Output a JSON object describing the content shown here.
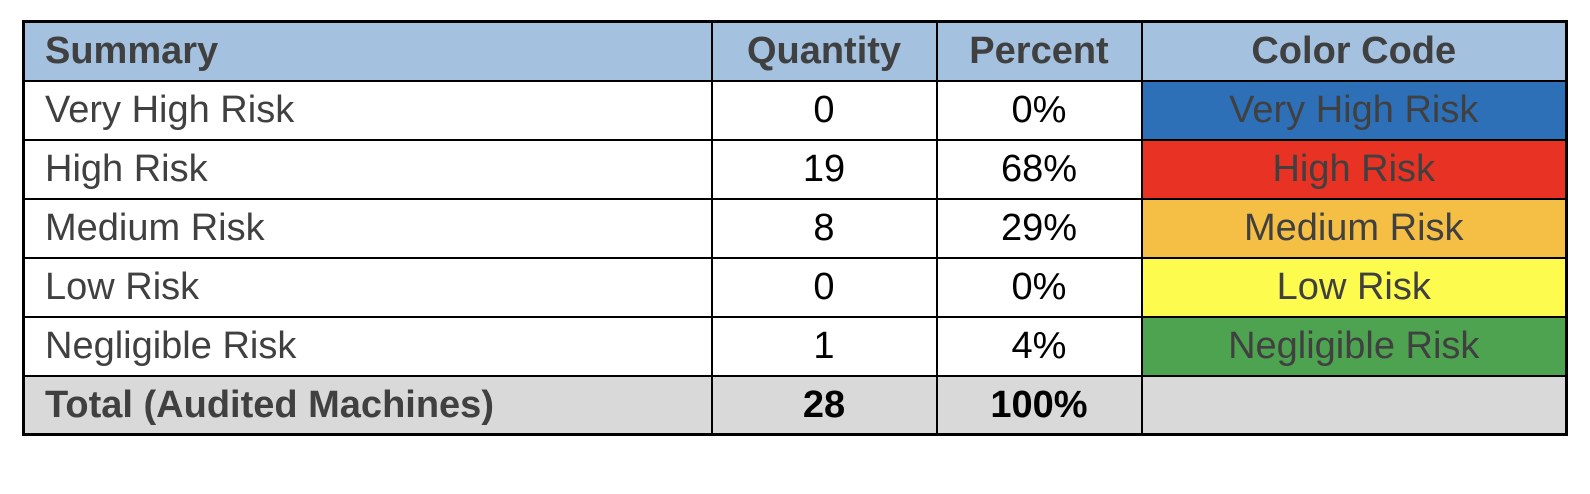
{
  "headers": {
    "summary": "Summary",
    "quantity": "Quantity",
    "percent": "Percent",
    "color_code": "Color Code"
  },
  "rows": [
    {
      "label": "Very High Risk",
      "quantity": "0",
      "percent": "0%",
      "color_label": "Very High Risk",
      "color": "#2e70b8"
    },
    {
      "label": "High Risk",
      "quantity": "19",
      "percent": "68%",
      "color_label": "High Risk",
      "color": "#e83224"
    },
    {
      "label": "Medium Risk",
      "quantity": "8",
      "percent": "29%",
      "color_label": "Medium Risk",
      "color": "#f5bf45"
    },
    {
      "label": "Low Risk",
      "quantity": "0",
      "percent": "0%",
      "color_label": "Low Risk",
      "color": "#fdfb4e"
    },
    {
      "label": "Negligible Risk",
      "quantity": "1",
      "percent": "4%",
      "color_label": "Negligible Risk",
      "color": "#4ea350"
    }
  ],
  "total": {
    "label": "Total (Audited Machines)",
    "quantity": "28",
    "percent": "100%"
  }
}
